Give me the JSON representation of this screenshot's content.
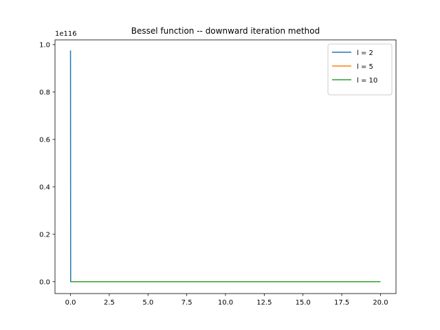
{
  "chart_data": {
    "type": "line",
    "title": "Bessel function -- downward iteration method",
    "xlabel": "",
    "ylabel": "",
    "y_offset_label": "1e116",
    "xlim": [
      -1,
      21
    ],
    "ylim": [
      -0.05,
      1.02
    ],
    "x_ticks": [
      0,
      2.5,
      5,
      7.5,
      10,
      12.5,
      15,
      17.5,
      20
    ],
    "x_tick_labels": [
      "0.0",
      "2.5",
      "5.0",
      "7.5",
      "10.0",
      "12.5",
      "15.0",
      "17.5",
      "20.0"
    ],
    "y_ticks": [
      0,
      0.2,
      0.4,
      0.6,
      0.8,
      1.0
    ],
    "y_tick_labels": [
      "0.0",
      "0.2",
      "0.4",
      "0.6",
      "0.8",
      "1.0"
    ],
    "grid": false,
    "legend_position": "top-right",
    "series": [
      {
        "name": "l = 2",
        "color": "#1f77b4",
        "x": [
          0,
          0.01,
          20
        ],
        "y": [
          0.975,
          0,
          0
        ]
      },
      {
        "name": "l = 5",
        "color": "#ff7f0e",
        "x": [
          0,
          0.01,
          20
        ],
        "y": [
          0,
          0,
          0
        ]
      },
      {
        "name": "l = 10",
        "color": "#2ca02c",
        "x": [
          0,
          0.01,
          20
        ],
        "y": [
          0,
          0,
          0
        ]
      }
    ]
  }
}
